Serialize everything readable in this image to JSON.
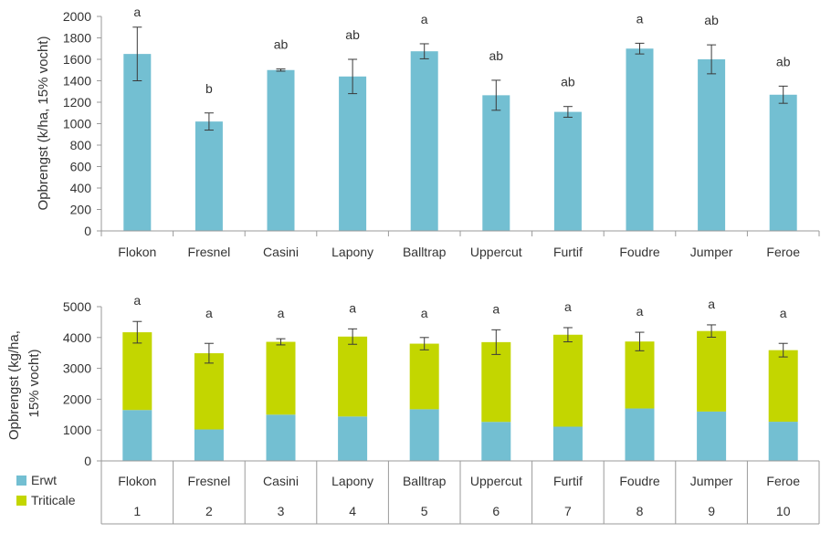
{
  "chart_data": [
    {
      "type": "bar",
      "title": "",
      "xlabel": "",
      "ylabel": "Opbrengst (k/ha, 15% vocht)",
      "ylim": [
        0,
        2000
      ],
      "yticks": [
        0,
        200,
        400,
        600,
        800,
        1000,
        1200,
        1400,
        1600,
        1800,
        2000
      ],
      "grid": false,
      "categories": [
        "Flokon",
        "Fresnel",
        "Casini",
        "Lapony",
        "Balltrap",
        "Uppercut",
        "Furtif",
        "Foudre",
        "Jumper",
        "Feroe"
      ],
      "series": [
        {
          "values": [
            1650,
            1020,
            1500,
            1440,
            1675,
            1265,
            1110,
            1700,
            1600,
            1270
          ],
          "color": "#73bfd2"
        }
      ],
      "error": [
        250,
        80,
        10,
        160,
        70,
        140,
        50,
        50,
        135,
        80
      ],
      "annotations": [
        "a",
        "b",
        "ab",
        "ab",
        "a",
        "ab",
        "ab",
        "a",
        "ab",
        "ab"
      ]
    },
    {
      "type": "bar",
      "stacked": true,
      "title": "",
      "xlabel": "",
      "ylabel_lines": [
        "Opbrengst (kg/ha,",
        "15% vocht)"
      ],
      "ylim": [
        0,
        5000
      ],
      "yticks": [
        0,
        1000,
        2000,
        3000,
        4000,
        5000
      ],
      "grid": false,
      "legend_position": "bottom-left",
      "categories": [
        "Flokon",
        "Fresnel",
        "Casini",
        "Lapony",
        "Balltrap",
        "Uppercut",
        "Furtif",
        "Foudre",
        "Jumper",
        "Feroe"
      ],
      "category_numbers": [
        "1",
        "2",
        "3",
        "4",
        "5",
        "6",
        "7",
        "8",
        "9",
        "10"
      ],
      "series": [
        {
          "name": "Erwt",
          "values": [
            1650,
            1020,
            1500,
            1440,
            1675,
            1265,
            1110,
            1700,
            1600,
            1270
          ],
          "color": "#73bfd2"
        },
        {
          "name": "Triticale",
          "values": [
            2520,
            2470,
            2360,
            2590,
            2125,
            2585,
            2980,
            2170,
            2610,
            2320
          ],
          "color": "#c3d600"
        }
      ],
      "totals": [
        4170,
        3490,
        3860,
        4030,
        3800,
        3850,
        4090,
        3870,
        4210,
        3590
      ],
      "error": [
        350,
        320,
        100,
        250,
        200,
        400,
        230,
        300,
        200,
        220
      ],
      "annotations": [
        "a",
        "a",
        "a",
        "a",
        "a",
        "a",
        "a",
        "a",
        "a",
        "a"
      ]
    }
  ]
}
